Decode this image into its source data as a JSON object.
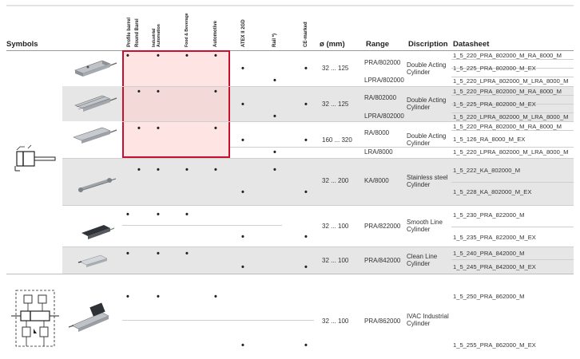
{
  "headers": {
    "symbols": "Symbols",
    "profile_barrel": "Profile barrel",
    "round_barrel": "Round Barel",
    "industrial_automation": "Industrial Automation",
    "food_beverage": "Food & Beverage",
    "automotive": "Automotive",
    "atex": "ATEX II 2GD",
    "rail": "Rail *)",
    "ce_marked": "CE-marked",
    "diameter": "ø (mm)",
    "range": "Range",
    "description": "Discription",
    "datasheet": "Datasheet"
  },
  "rows": [
    {
      "diameter": "32 ... 125",
      "ranges": [
        "PRA/802000",
        "LPRA/802000"
      ],
      "description": "Double Acting Cylinder",
      "datasheets": [
        "1_5_220_PRA_802000_M_RA_8000_M",
        "1_5_225_PRA_802000_M_EX",
        "1_5_220_LPRA_802000_M_LRA_8000_M"
      ]
    },
    {
      "diameter": "32 ... 125",
      "ranges": [
        "RA/802000",
        "LPRA/802000"
      ],
      "description": "Double Acting Cylinder",
      "datasheets": [
        "1_5_220_PRA_802000_M_RA_8000_M",
        "1_5_225_PRA_802000_M_EX",
        "1_5_220_LPRA_802000_M_LRA_8000_M"
      ]
    },
    {
      "diameter": "160 ... 320",
      "ranges": [
        "RA/8000",
        "LRA/8000"
      ],
      "description": "Double Acting Cylinder",
      "datasheets": [
        "1_5_220_PRA_802000_M_RA_8000_M",
        "1_5_126_RA_8000_M_EX",
        "1_5_220_LPRA_802000_M_LRA_8000_M"
      ]
    },
    {
      "diameter": "32 ... 200",
      "ranges": [
        "KA/8000"
      ],
      "description": "Stainless steel Cylinder",
      "datasheets": [
        "1_5_222_KA_802000_M",
        "1_5_228_KA_802000_M_EX"
      ]
    },
    {
      "diameter": "32 ... 100",
      "ranges": [
        "PRA/822000"
      ],
      "description": "Smooth Line Cylinder",
      "datasheets": [
        "1_5_230_PRA_822000_M",
        "1_5_235_PRA_822000_M_EX"
      ]
    },
    {
      "diameter": "32 ... 100",
      "ranges": [
        "PRA/842000"
      ],
      "description": "Clean Line Cylinder",
      "datasheets": [
        "1_5_240_PRA_842000_M",
        "1_5_245_PRA_842000_M_EX"
      ]
    },
    {
      "diameter": "32 ... 100",
      "ranges": [
        "PRA/862000"
      ],
      "description": "IVAC Industrial Cylinder",
      "datasheets": [
        "1_5_250_PRA_862000_M",
        "1_5_255_PRA_862000_M_EX"
      ]
    }
  ],
  "bullet": "•",
  "colors": {
    "highlight_border": "#c8102e",
    "highlight_fill": "#ffcdcd",
    "band": "#e6e6e6"
  }
}
